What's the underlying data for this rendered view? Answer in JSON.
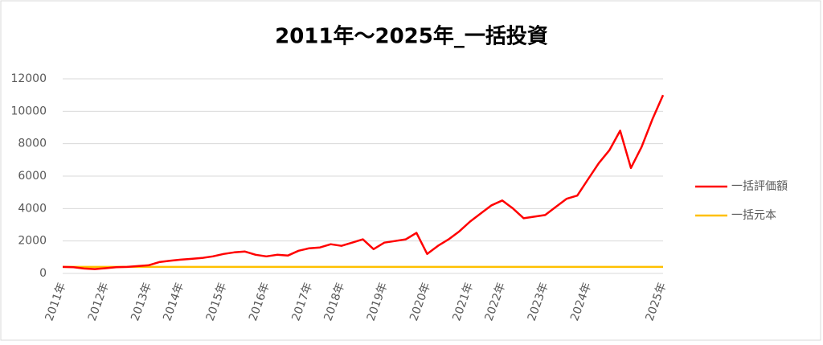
{
  "chart_data": {
    "type": "line",
    "title": "2011年～2025年_一括投資",
    "categories": [
      "2011年",
      null,
      null,
      null,
      "2012年",
      null,
      null,
      null,
      "2013年",
      null,
      null,
      "2014年",
      null,
      null,
      null,
      "2015年",
      null,
      null,
      null,
      "2016年",
      null,
      null,
      null,
      "2017年",
      null,
      null,
      "2018年",
      null,
      null,
      null,
      "2019年",
      null,
      null,
      null,
      "2020年",
      null,
      null,
      null,
      "2021年",
      null,
      null,
      "2022年",
      null,
      null,
      null,
      "2023年",
      null,
      null,
      null,
      "2024年",
      null,
      null,
      null,
      null,
      null,
      null,
      "2025年"
    ],
    "series": [
      {
        "name": "一括評価額",
        "color": "#ff0000",
        "values": [
          400,
          380,
          300,
          270,
          320,
          380,
          400,
          450,
          500,
          700,
          780,
          850,
          900,
          950,
          1050,
          1200,
          1300,
          1350,
          1150,
          1050,
          1150,
          1100,
          1400,
          1550,
          1600,
          1800,
          1700,
          1900,
          2100,
          1500,
          1900,
          2000,
          2100,
          2500,
          1200,
          1700,
          2100,
          2600,
          3200,
          3700,
          4200,
          4500,
          4000,
          3400,
          3500,
          3600,
          4100,
          4600,
          4800,
          5800,
          6800,
          7600,
          8800,
          6500,
          7800,
          9500,
          11000
        ]
      },
      {
        "name": "一括元本",
        "color": "#ffc000",
        "values": [
          400,
          400,
          400,
          400,
          400,
          400,
          400,
          400,
          400,
          400,
          400,
          400,
          400,
          400,
          400,
          400,
          400,
          400,
          400,
          400,
          400,
          400,
          400,
          400,
          400,
          400,
          400,
          400,
          400,
          400,
          400,
          400,
          400,
          400,
          400,
          400,
          400,
          400,
          400,
          400,
          400,
          400,
          400,
          400,
          400,
          400,
          400,
          400,
          400,
          400,
          400,
          400,
          400,
          400,
          400,
          400,
          400
        ]
      }
    ],
    "ylim": [
      0,
      12000
    ],
    "yticks": [
      0,
      2000,
      4000,
      6000,
      8000,
      10000,
      12000
    ],
    "grid": true,
    "legend": "right"
  }
}
